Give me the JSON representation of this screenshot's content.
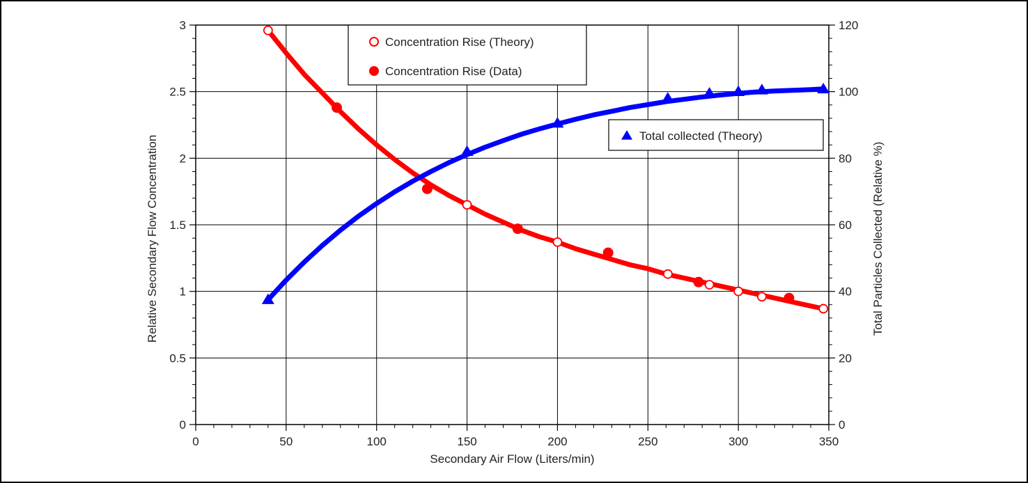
{
  "chart_data": {
    "type": "scatter",
    "xlabel": "Secondary Air Flow (Liters/min)",
    "ylabel": "Relative Secondary Flow Concentration",
    "y2label": "Total Particles Collected (Relative %)",
    "xlim": [
      0,
      350
    ],
    "ylim": [
      0,
      3
    ],
    "y2lim": [
      0,
      120
    ],
    "grid": true,
    "x_ticks": [
      "0",
      "50",
      "100",
      "150",
      "200",
      "250",
      "300",
      "350"
    ],
    "y_ticks": [
      "0",
      "0.5",
      "1",
      "1.5",
      "2",
      "2.5",
      "3"
    ],
    "y2_ticks": [
      "0",
      "20",
      "40",
      "60",
      "80",
      "100",
      "120"
    ],
    "series": [
      {
        "name": "Concentration Rise (Theory)",
        "axis": "left",
        "marker": "open-circle",
        "color": "#ff0000",
        "x": [
          40,
          150,
          200,
          261,
          284,
          300,
          313,
          347
        ],
        "y": [
          2.96,
          1.65,
          1.37,
          1.13,
          1.05,
          1.0,
          0.96,
          0.87
        ]
      },
      {
        "name": "Concentration Rise (Data)",
        "axis": "left",
        "marker": "filled-circle",
        "color": "#ff0000",
        "x": [
          78,
          128,
          178,
          228,
          278,
          328
        ],
        "y": [
          2.38,
          1.77,
          1.47,
          1.29,
          1.07,
          0.95
        ]
      },
      {
        "name": "Total collected (Theory)",
        "axis": "right",
        "marker": "filled-triangle",
        "color": "#0000ff",
        "x": [
          40,
          150,
          200,
          261,
          284,
          300,
          313,
          347
        ],
        "y": [
          37.5,
          82,
          90.5,
          98,
          99.5,
          100,
          100.5,
          100.8
        ]
      }
    ],
    "curves": [
      {
        "axis": "left",
        "color": "#ff0000",
        "x": [
          40,
          50,
          60,
          70,
          80,
          90,
          100,
          110,
          120,
          130,
          140,
          150,
          160,
          170,
          180,
          190,
          200,
          210,
          220,
          230,
          240,
          250,
          260,
          270,
          280,
          290,
          300,
          310,
          320,
          330,
          340,
          347
        ],
        "y": [
          2.96,
          2.79,
          2.63,
          2.49,
          2.35,
          2.22,
          2.1,
          1.99,
          1.89,
          1.8,
          1.72,
          1.65,
          1.58,
          1.52,
          1.46,
          1.41,
          1.37,
          1.32,
          1.28,
          1.24,
          1.2,
          1.17,
          1.13,
          1.1,
          1.07,
          1.04,
          1.01,
          0.98,
          0.95,
          0.92,
          0.89,
          0.87
        ]
      },
      {
        "axis": "right",
        "color": "#0000ff",
        "x": [
          40,
          50,
          60,
          70,
          80,
          90,
          100,
          110,
          120,
          130,
          140,
          150,
          160,
          170,
          180,
          190,
          200,
          210,
          220,
          230,
          240,
          250,
          260,
          270,
          280,
          290,
          300,
          310,
          320,
          330,
          340,
          347
        ],
        "y": [
          37.5,
          43.4,
          48.8,
          53.8,
          58.4,
          62.6,
          66.4,
          69.9,
          73.1,
          76.0,
          78.7,
          81.1,
          83.3,
          85.3,
          87.2,
          88.8,
          90.3,
          91.7,
          93.0,
          94.1,
          95.2,
          96.1,
          97.0,
          97.7,
          98.4,
          99.0,
          99.5,
          99.9,
          100.2,
          100.4,
          100.6,
          100.8
        ]
      }
    ],
    "legends": [
      {
        "placement": "top-center",
        "entries": [
          "Concentration Rise (Theory)",
          "Concentration Rise (Data)"
        ]
      },
      {
        "placement": "right-upper",
        "entries": [
          "Total collected (Theory)"
        ]
      }
    ]
  }
}
